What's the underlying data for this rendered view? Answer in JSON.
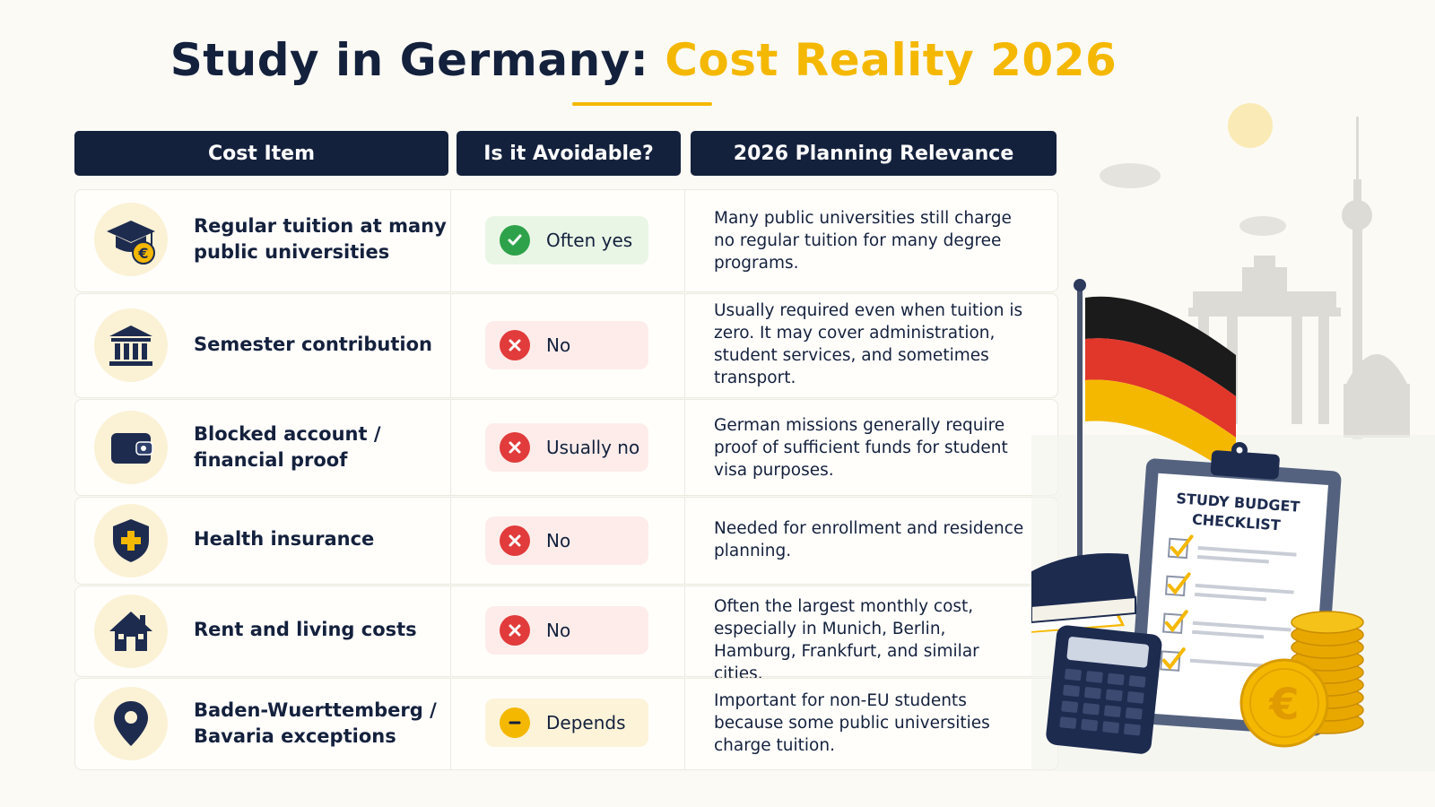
{
  "title": {
    "part1": "Study in Germany:",
    "part2": "Cost Reality 2026"
  },
  "colors": {
    "navy": "#14213d",
    "accent": "#f5b800",
    "yes": "#2ea24a",
    "no": "#e23b3b"
  },
  "table": {
    "headers": [
      "Cost Item",
      "Is it Avoidable?",
      "2026 Planning Relevance"
    ],
    "rows": [
      {
        "icon": "graduation-cap-euro-icon",
        "item": "Regular tuition at many public universities",
        "status": "yes",
        "avoidable": "Often yes",
        "relevance": "Many public universities still charge no regular tuition for many degree programs."
      },
      {
        "icon": "university-building-icon",
        "item": "Semester contribution",
        "status": "no",
        "avoidable": "No",
        "relevance": "Usually required even when tuition is zero. It may cover administration, student services, and sometimes transport."
      },
      {
        "icon": "wallet-icon",
        "item": "Blocked account / financial proof",
        "status": "no",
        "avoidable": "Usually no",
        "relevance": "German missions generally require proof of sufficient funds for student visa purposes."
      },
      {
        "icon": "shield-plus-icon",
        "item": "Health insurance",
        "status": "no",
        "avoidable": "No",
        "relevance": "Needed for enrollment and residence planning."
      },
      {
        "icon": "house-icon",
        "item": "Rent and living costs",
        "status": "no",
        "avoidable": "No",
        "relevance": "Often the largest monthly cost, especially in Munich, Berlin, Hamburg, Frankfurt, and similar cities."
      },
      {
        "icon": "location-pin-icon",
        "item": "Baden-Wuerttemberg / Bavaria exceptions",
        "status": "depends",
        "avoidable": "Depends",
        "relevance": "Important for non-EU students because some public universities charge tuition."
      }
    ]
  },
  "illustration": {
    "checklist_title_line1": "STUDY BUDGET",
    "checklist_title_line2": "CHECKLIST",
    "icons": [
      "german-flag-icon",
      "clipboard-checklist-icon",
      "calculator-icon",
      "books-icon",
      "euro-coins-icon",
      "tv-tower-icon",
      "brandenburg-gate-icon",
      "sun-icon"
    ]
  }
}
